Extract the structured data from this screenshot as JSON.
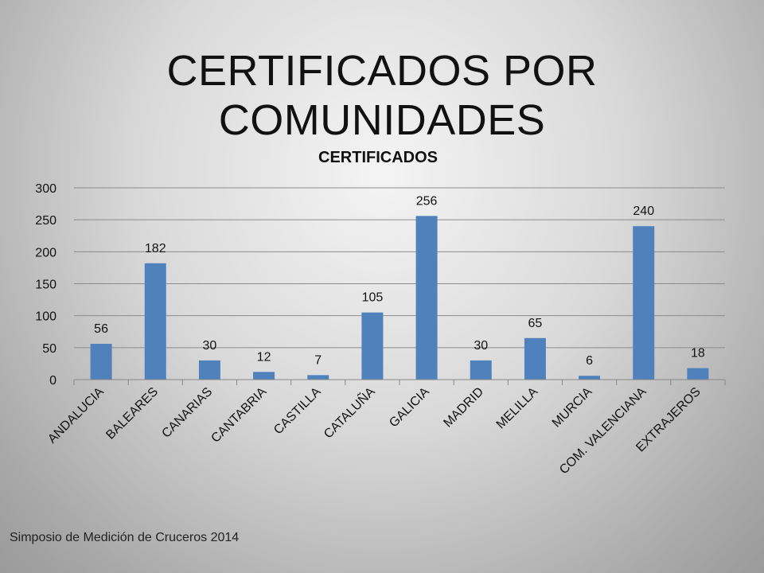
{
  "slide": {
    "title": "CERTIFICADOS POR COMUNIDADES",
    "footer": "Simposio de Medición de Cruceros 2014"
  },
  "chart_data": {
    "type": "bar",
    "title": "CERTIFICADOS",
    "categories": [
      "ANDALUCIA",
      "BALEARES",
      "CANARIAS",
      "CANTABRIA",
      "CASTILLA",
      "CATALUÑA",
      "GALICIA",
      "MADRID",
      "MELILLA",
      "MURCIA",
      "COM. VALENCIANA",
      "EXTRAJEROS"
    ],
    "values": [
      56,
      182,
      30,
      12,
      7,
      105,
      256,
      30,
      65,
      6,
      240,
      18
    ],
    "ylim": [
      0,
      300
    ],
    "yticks": [
      0,
      50,
      100,
      150,
      200,
      250,
      300
    ],
    "grid": true,
    "legend": "none",
    "bar_color": "#4f81bd"
  }
}
